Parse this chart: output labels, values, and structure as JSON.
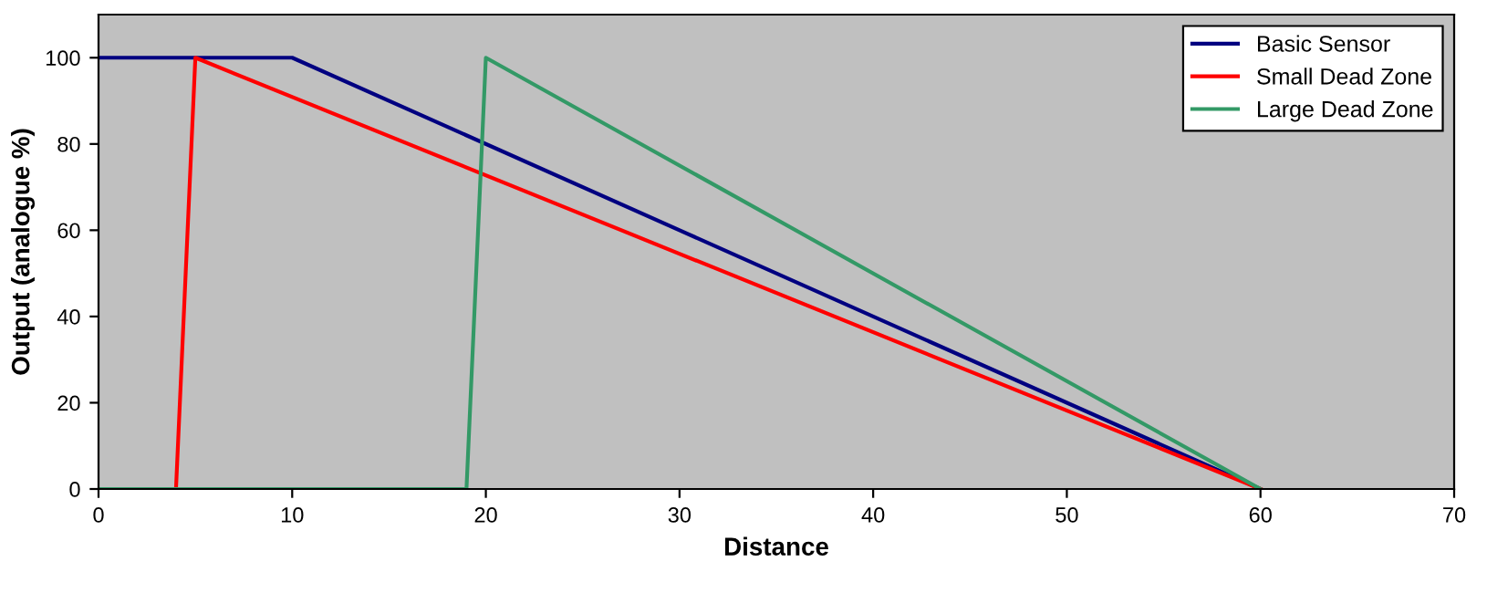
{
  "chart_data": {
    "type": "line",
    "xlabel": "Distance",
    "ylabel": "Output (analogue %)",
    "series": [
      {
        "name": "Basic Sensor",
        "color": "#000080",
        "x": [
          0,
          10,
          60
        ],
        "values": [
          100,
          100,
          0
        ]
      },
      {
        "name": "Small Dead Zone",
        "color": "#ff0000",
        "x": [
          0,
          4,
          5,
          60
        ],
        "values": [
          0,
          0,
          100,
          0
        ]
      },
      {
        "name": "Large Dead Zone",
        "color": "#339966",
        "x": [
          0,
          19,
          20,
          60
        ],
        "values": [
          0,
          0,
          100,
          0
        ]
      }
    ],
    "xlim": [
      0,
      70
    ],
    "xticks": [
      0,
      10,
      20,
      30,
      40,
      50,
      60,
      70
    ],
    "ylim": [
      0,
      110
    ],
    "yticks": [
      0,
      20,
      40,
      60,
      80,
      100
    ],
    "grid": false,
    "legend": "top right",
    "marker": "none",
    "line_style": "solid"
  }
}
